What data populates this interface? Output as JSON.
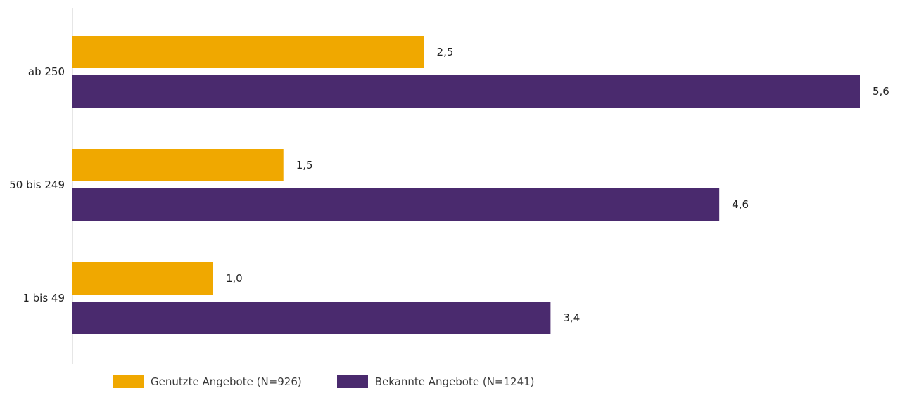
{
  "chart_data": {
    "type": "bar",
    "orientation": "horizontal",
    "categories": [
      "ab 250",
      "50 bis 249",
      "1 bis 49"
    ],
    "series": [
      {
        "name": "Genutzte Angebote (N=926)",
        "color": "#f0a800",
        "values": [
          2.5,
          1.5,
          1.0
        ],
        "labels": [
          "2,5",
          "1,5",
          "1,0"
        ]
      },
      {
        "name": "Bekannte Angebote (N=1241)",
        "color": "#4a2a6e",
        "values": [
          5.6,
          4.6,
          3.4
        ],
        "labels": [
          "5,6",
          "4,6",
          "3,4"
        ]
      }
    ],
    "title": "",
    "xlabel": "",
    "ylabel": "",
    "xlim": [
      0,
      5.6
    ],
    "grid": false,
    "legend_position": "bottom"
  }
}
